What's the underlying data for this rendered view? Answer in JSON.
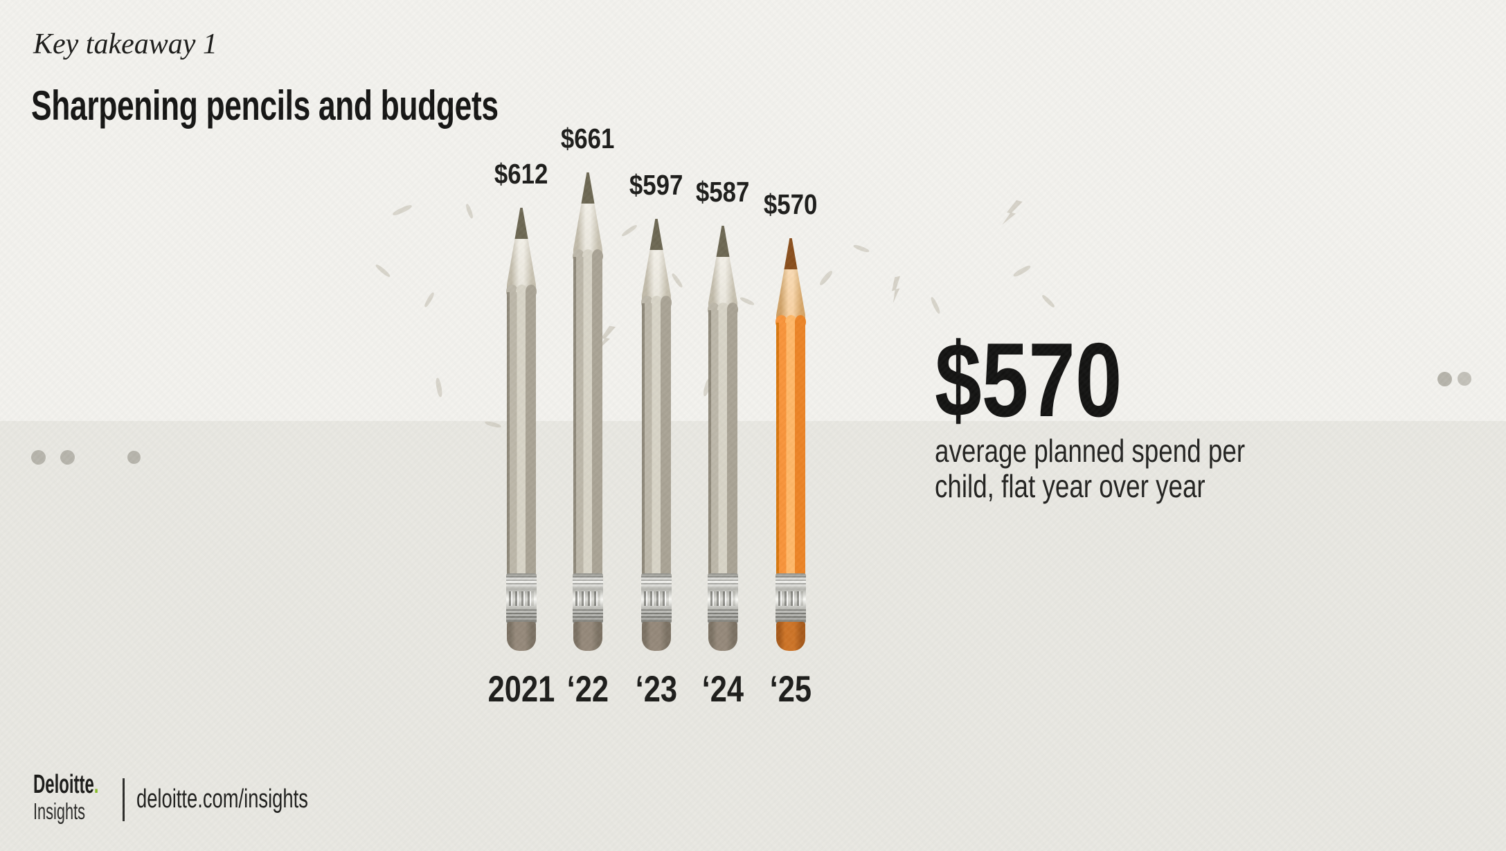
{
  "page": {
    "background_top": "#f3f2ee",
    "background_band": "#e9e8e2"
  },
  "header": {
    "kicker": "Key takeaway 1",
    "title": "Sharpening pencils and budgets"
  },
  "chart_data": {
    "type": "bar",
    "title": "Sharpening pencils and budgets",
    "categories": [
      "2021",
      "‘22",
      "‘23",
      "‘24",
      "‘25"
    ],
    "values": [
      612,
      661,
      597,
      587,
      570
    ],
    "value_labels": [
      "$612",
      "$661",
      "$597",
      "$587",
      "$570"
    ],
    "unit": "USD per child",
    "ylim": [
      0,
      700
    ],
    "grid": false,
    "legend": false,
    "bar_style": "pencil",
    "highlight_index": 4,
    "colors": {
      "default": "#b7b2a4",
      "highlight": "#f28b2e"
    }
  },
  "callout": {
    "value": "$570",
    "description_lines": [
      "average planned spend per",
      "child, flat year over year"
    ]
  },
  "decor": {
    "left_dots": 3,
    "right_dots": 2,
    "dot_color": "#b6b4ab"
  },
  "footer": {
    "brand": "Deloitte",
    "brand_dot": ".",
    "brand_sub": "Insights",
    "url": "deloitte.com/insights",
    "accent_green": "#86bc25"
  }
}
